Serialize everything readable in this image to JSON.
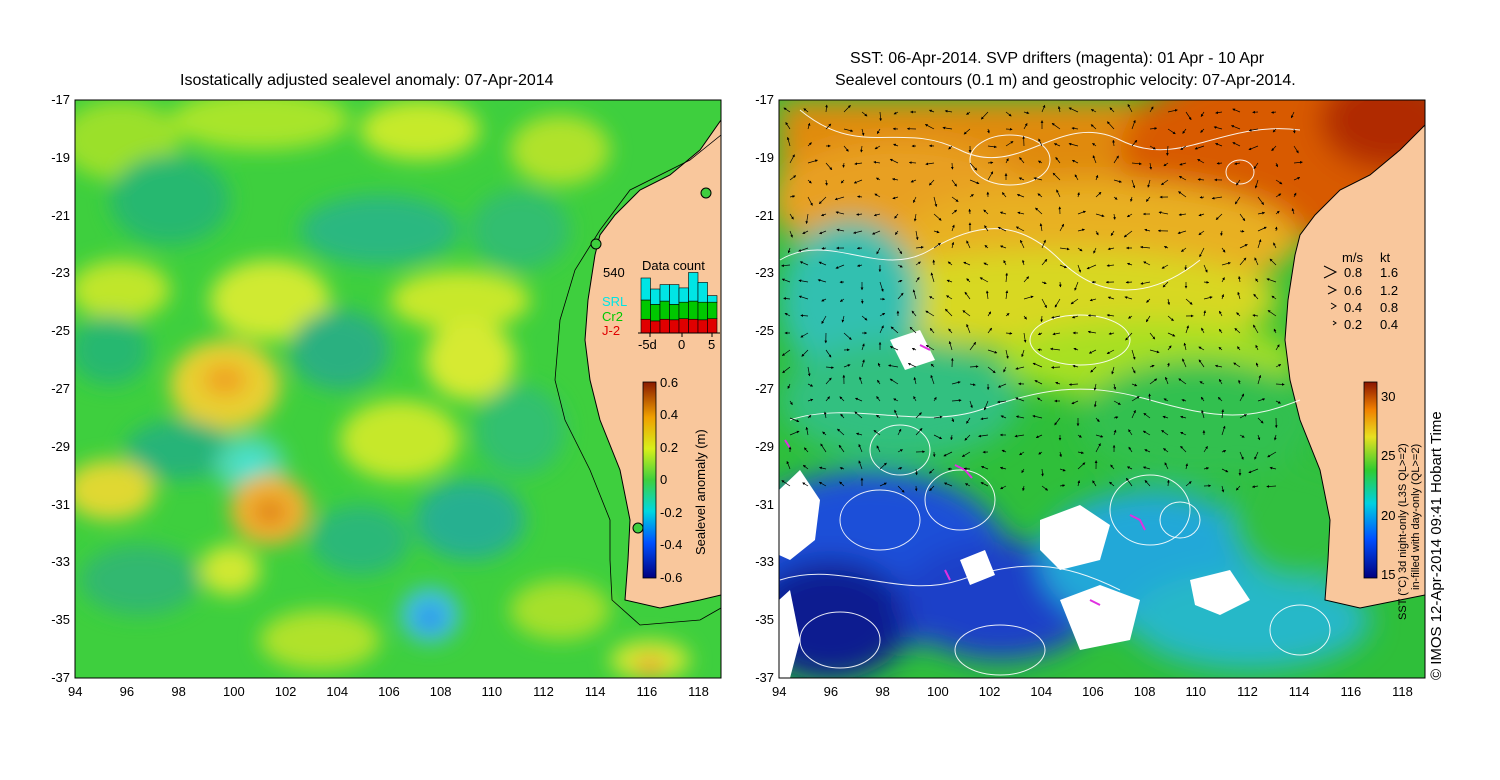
{
  "left_panel": {
    "title": "Isostatically adjusted sealevel anomaly: 07-Apr-2014",
    "colorbar": {
      "ticks": [
        "0.6",
        "0.4",
        "0.2",
        "0",
        "-0.2",
        "-0.4",
        "-0.6"
      ],
      "label": "Sealevel anomaly (m)"
    },
    "data_count": {
      "title": "Data count",
      "max_label": "540",
      "sources": [
        {
          "name": "SRL",
          "color": "#00e5e5"
        },
        {
          "name": "Cr2",
          "color": "#00c800"
        },
        {
          "name": "J-2",
          "color": "#e00000"
        }
      ],
      "x_ticks": [
        "-5d",
        "0",
        "5"
      ],
      "bars": [
        {
          "j2": 0.25,
          "cr2": 0.35,
          "srl": 0.4
        },
        {
          "j2": 0.22,
          "cr2": 0.3,
          "srl": 0.28
        },
        {
          "j2": 0.25,
          "cr2": 0.33,
          "srl": 0.3
        },
        {
          "j2": 0.24,
          "cr2": 0.28,
          "srl": 0.36
        },
        {
          "j2": 0.26,
          "cr2": 0.3,
          "srl": 0.26
        },
        {
          "j2": 0.25,
          "cr2": 0.33,
          "srl": 0.52
        },
        {
          "j2": 0.24,
          "cr2": 0.32,
          "srl": 0.36
        },
        {
          "j2": 0.26,
          "cr2": 0.3,
          "srl": 0.12
        }
      ]
    }
  },
  "right_panel": {
    "title_line1": "SST: 06-Apr-2014. SVP drifters (magenta): 01 Apr - 10 Apr",
    "title_line2": "Sealevel contours (0.1 m) and geostrophic velocity: 07-Apr-2014.",
    "speed_legend": {
      "header_ms": "m/s",
      "header_kt": "kt",
      "rows": [
        {
          "ms": "0.8",
          "kt": "1.6"
        },
        {
          "ms": "0.6",
          "kt": "1.2"
        },
        {
          "ms": "0.4",
          "kt": "0.8"
        },
        {
          "ms": "0.2",
          "kt": "0.4"
        }
      ]
    },
    "colorbar": {
      "ticks": [
        "30",
        "25",
        "20",
        "15"
      ],
      "label_line1": "SST (°C) 3d night-only (L3S QL>=2)",
      "label_line2": "in-filled with day-only (QL>=2)"
    },
    "credit": "© IMOS 12-Apr-2014 09:41 Hobart Time"
  },
  "axes": {
    "lat_ticks": [
      "-17",
      "-19",
      "-21",
      "-23",
      "-25",
      "-27",
      "-29",
      "-31",
      "-33",
      "-35",
      "-37"
    ],
    "lon_ticks": [
      "94",
      "96",
      "98",
      "100",
      "102",
      "104",
      "106",
      "108",
      "110",
      "112",
      "114",
      "116",
      "118"
    ]
  },
  "colors": {
    "land": "#f9c79c",
    "sla_base": "#3ecf3e",
    "sst_warm": "#e06a00",
    "sst_cold": "#1e2fb8"
  }
}
